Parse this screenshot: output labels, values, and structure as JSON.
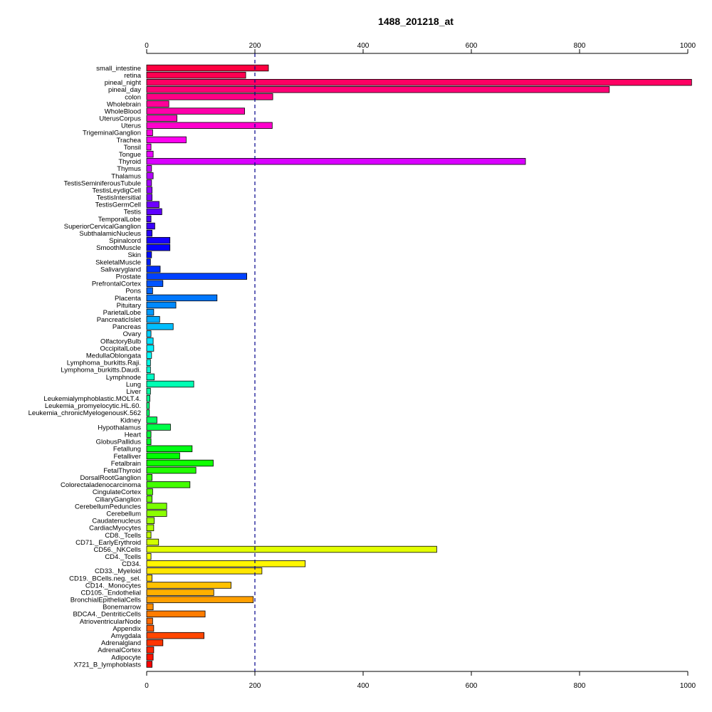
{
  "chart_data": {
    "type": "bar",
    "orientation": "horizontal",
    "title": "1488_201218_at",
    "xlabel": "",
    "ylabel": "",
    "xlim": [
      0,
      1000
    ],
    "x_ticks": [
      0,
      200,
      400,
      600,
      800,
      1000
    ],
    "reference_line": 200,
    "reference_line_color": "#00008b",
    "grid": false,
    "color_scheme": "rainbow",
    "categories": [
      "small_intestine",
      "retina",
      "pineal_night",
      "pineal_day",
      "colon",
      "Wholebrain",
      "WholeBlood",
      "UterusCorpus",
      "Uterus",
      "TrigeminalGanglion",
      "Trachea",
      "Tonsil",
      "Tongue",
      "Thyroid",
      "Thymus",
      "Thalamus",
      "TestisSeminiferousTubule",
      "TestisLeydigCell",
      "TestisIntersitial",
      "TestisGermCell",
      "Testis",
      "TemporalLobe",
      "SuperiorCervicalGanglion",
      "SubthalamicNucleus",
      "Spinalcord",
      "SmoothMuscle",
      "Skin",
      "SkeletalMuscle",
      "Salivarygland",
      "Prostate",
      "PrefrontalCortex",
      "Pons",
      "Placenta",
      "Pituitary",
      "ParietalLobe",
      "PancreaticIslet",
      "Pancreas",
      "Ovary",
      "OlfactoryBulb",
      "OccipitalLobe",
      "MedullaOblongata",
      "Lymphoma_burkitts.Raji.",
      "Lymphoma_burkitts.Daudi.",
      "Lymphnode",
      "Lung",
      "Liver",
      "Leukemialymphoblastic.MOLT.4.",
      "Leukemia_promyelocytic.HL.60.",
      "Leukemia_chronicMyelogenousK.562",
      "Kidney",
      "Hypothalamus",
      "Heart",
      "GlobusPallidus",
      "Fetallung",
      "Fetalliver",
      "Fetalbrain",
      "FetalThyroid",
      "DorsalRootGanglion",
      "Colorectaladenocarcinoma",
      "CingulateCortex",
      "CiliaryGanglion",
      "CerebellumPeduncles",
      "Cerebellum",
      "Caudatenucleus",
      "CardiacMyocytes",
      "CD8._Tcells",
      "CD71._EarlyErythroid",
      "CD56._NKCells",
      "CD4._Tcells",
      "CD34.",
      "CD33._Myeloid",
      "CD19._BCells.neg._sel.",
      "CD14._Monocytes",
      "CD105._Endothelial",
      "BronchialEpithelialCells",
      "Bonemarrow",
      "BDCA4._DentriticCells",
      "AtrioventricularNode",
      "Appendix",
      "Amygdala",
      "Adrenalgland",
      "AdrenalCortex",
      "Adipocyte",
      "X721_B_lymphoblasts"
    ],
    "values": [
      225,
      183,
      1007,
      855,
      233,
      41,
      181,
      56,
      232,
      11,
      73,
      8,
      12,
      700,
      9,
      12,
      9,
      10,
      10,
      23,
      28,
      8,
      15,
      10,
      43,
      43,
      9,
      7,
      25,
      185,
      30,
      11,
      130,
      54,
      13,
      24,
      49,
      8,
      12,
      13,
      9,
      7,
      7,
      14,
      87,
      7,
      6,
      5,
      5,
      19,
      44,
      8,
      8,
      84,
      61,
      123,
      91,
      10,
      80,
      11,
      10,
      37,
      37,
      14,
      13,
      8,
      22,
      536,
      8,
      293,
      213,
      10,
      156,
      124,
      197,
      12,
      108,
      11,
      13,
      106,
      30,
      13,
      12,
      10
    ]
  }
}
